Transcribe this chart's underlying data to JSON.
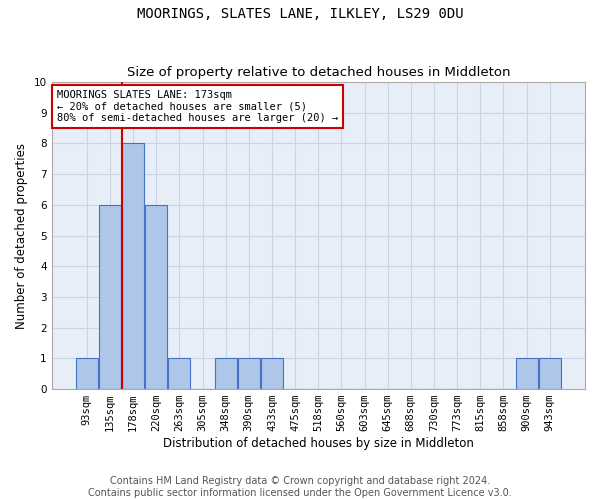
{
  "title": "MOORINGS, SLATES LANE, ILKLEY, LS29 0DU",
  "subtitle": "Size of property relative to detached houses in Middleton",
  "xlabel": "Distribution of detached houses by size in Middleton",
  "ylabel": "Number of detached properties",
  "footer_line1": "Contains HM Land Registry data © Crown copyright and database right 2024.",
  "footer_line2": "Contains public sector information licensed under the Open Government Licence v3.0.",
  "categories": [
    "93sqm",
    "135sqm",
    "178sqm",
    "220sqm",
    "263sqm",
    "305sqm",
    "348sqm",
    "390sqm",
    "433sqm",
    "475sqm",
    "518sqm",
    "560sqm",
    "603sqm",
    "645sqm",
    "688sqm",
    "730sqm",
    "773sqm",
    "815sqm",
    "858sqm",
    "900sqm",
    "943sqm"
  ],
  "bar_values": [
    1,
    6,
    8,
    6,
    1,
    0,
    1,
    1,
    1,
    0,
    0,
    0,
    0,
    0,
    0,
    0,
    0,
    0,
    0,
    1,
    1
  ],
  "bar_color": "#aec6e8",
  "bar_edgecolor": "#4472c4",
  "grid_color": "#c8d4e8",
  "background_color": "#e8eef8",
  "red_line_index": 2,
  "ylim": [
    0,
    10
  ],
  "yticks": [
    0,
    1,
    2,
    3,
    4,
    5,
    6,
    7,
    8,
    9,
    10
  ],
  "annotation_text": "MOORINGS SLATES LANE: 173sqm\n← 20% of detached houses are smaller (5)\n80% of semi-detached houses are larger (20) →",
  "annotation_box_color": "#ffffff",
  "annotation_box_edgecolor": "#cc0000",
  "title_fontsize": 10,
  "subtitle_fontsize": 9.5,
  "axis_label_fontsize": 8.5,
  "tick_fontsize": 7.5,
  "annotation_fontsize": 7.5,
  "footer_fontsize": 7.0
}
